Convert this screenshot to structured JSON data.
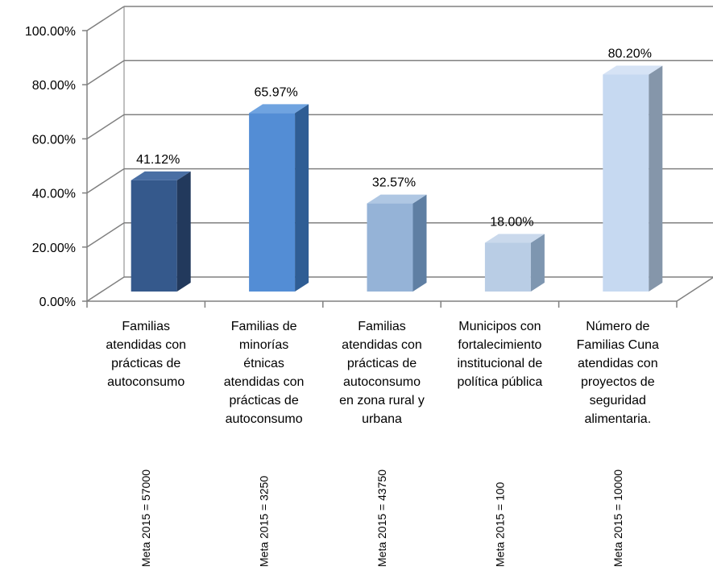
{
  "chart_data": {
    "type": "bar",
    "title": "",
    "xlabel": "",
    "ylabel": "",
    "ylim": [
      0,
      100
    ],
    "y_ticks": [
      "0.00%",
      "20.00%",
      "40.00%",
      "60.00%",
      "80.00%",
      "100.00%"
    ],
    "grid": true,
    "three_d": true,
    "categories": [
      [
        "Familias",
        "atendidas con",
        "prácticas de",
        "autoconsumo"
      ],
      [
        "Familias de",
        "minorías",
        "étnicas",
        "atendidas con",
        "prácticas de",
        "autoconsumo"
      ],
      [
        "Familias",
        "atendidas con",
        "prácticas de",
        "autoconsumo",
        "en zona rural y",
        "urbana"
      ],
      [
        "Municipos con",
        "fortalecimiento",
        "institucional de",
        "política pública"
      ],
      [
        "Número de",
        "Familias Cuna",
        "atendidas con",
        "proyectos de",
        "seguridad",
        "alimentaria."
      ]
    ],
    "values": [
      41.12,
      65.97,
      32.57,
      18.0,
      80.2
    ],
    "data_labels": [
      "41.12%",
      "65.97%",
      "32.57%",
      "18.00%",
      "80.20%"
    ],
    "meta_labels": [
      "Meta 2015 = 57000",
      "Meta 2015 = 3250",
      "Meta 2015 = 43750",
      "Meta 2015 = 100",
      "Meta 2015 = 10000"
    ],
    "colors": [
      {
        "front": "#35598C",
        "side": "#22395C",
        "top": "#4A6FA4"
      },
      {
        "front": "#538DD5",
        "side": "#2F5D94",
        "top": "#6FA3E0"
      },
      {
        "front": "#95B3D7",
        "side": "#5F7FA3",
        "top": "#AFC7E3"
      },
      {
        "front": "#B9CDE5",
        "side": "#7E96B0",
        "top": "#CAD9EC"
      },
      {
        "front": "#C6D9F1",
        "side": "#8596AA",
        "top": "#D6E3F5"
      }
    ],
    "gridline_color": "#808080"
  }
}
